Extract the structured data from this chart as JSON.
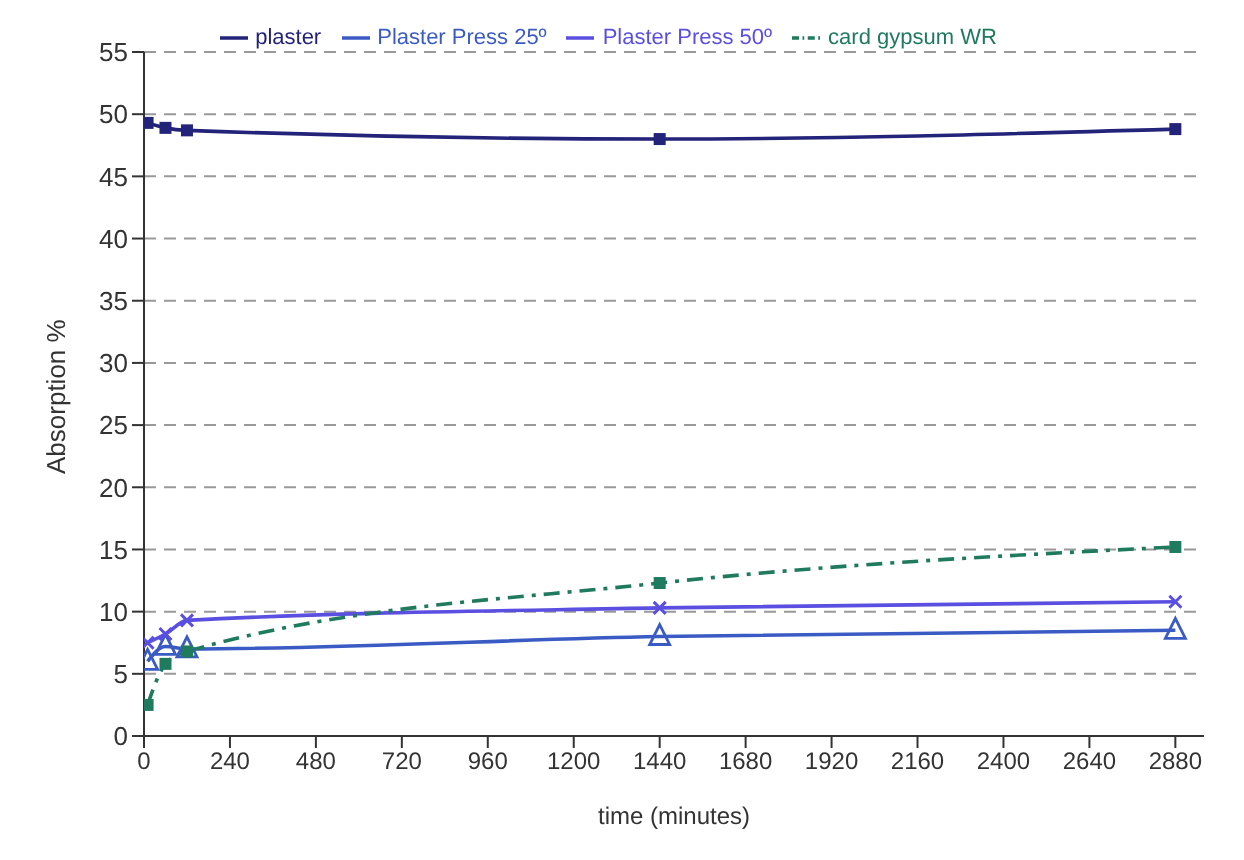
{
  "chart_data": {
    "type": "line",
    "xlabel": "time (minutes)",
    "ylabel": "Absorption %",
    "x": [
      10,
      60,
      120,
      1440,
      2880
    ],
    "series": [
      {
        "name": "plaster",
        "color": "#23237a",
        "marker": "square",
        "line_style": "solid",
        "values": [
          49.3,
          48.9,
          48.7,
          48,
          48.8
        ]
      },
      {
        "name": "Plaster Press 25º",
        "color": "#3b5bc4",
        "marker": "triangle",
        "line_style": "solid",
        "values": [
          6,
          7.2,
          7,
          8,
          8.5
        ]
      },
      {
        "name": "Plaster Press 50º",
        "color": "#5a4fe0",
        "marker": "cross",
        "line_style": "solid",
        "values": [
          7.5,
          8.2,
          9.3,
          10.3,
          10.8
        ]
      },
      {
        "name": "card gypsum WR",
        "color": "#1f7a5e",
        "marker": "square",
        "line_style": "dashed",
        "values": [
          2.5,
          5.8,
          6.8,
          12.3,
          15.2
        ]
      }
    ],
    "xlim": [
      0,
      2960
    ],
    "xticks": [
      0,
      240,
      480,
      720,
      960,
      1200,
      1440,
      1680,
      1920,
      2160,
      2400,
      2640,
      2880
    ],
    "ylim": [
      0,
      55
    ],
    "yticks": [
      0,
      5,
      10,
      15,
      20,
      25,
      30,
      35,
      40,
      45,
      50,
      55
    ],
    "grid": "y",
    "legend": "top"
  }
}
